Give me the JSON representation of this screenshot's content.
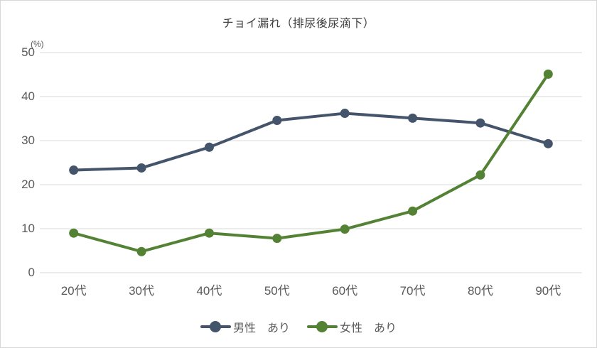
{
  "chart_data": {
    "type": "line",
    "title": "チョイ漏れ（排尿後尿滴下）",
    "unit_label": "(%)",
    "categories": [
      "20代",
      "30代",
      "40代",
      "50代",
      "60代",
      "70代",
      "80代",
      "90代"
    ],
    "series": [
      {
        "name": "男性　あり",
        "color": "#44546A",
        "values": [
          23.3,
          23.8,
          28.5,
          34.6,
          36.2,
          35.1,
          34.0,
          29.3
        ]
      },
      {
        "name": "女性　あり",
        "color": "#548235",
        "values": [
          9.0,
          4.8,
          9.0,
          7.8,
          9.9,
          14.0,
          22.2,
          45.1
        ]
      }
    ],
    "xlabel": "",
    "ylabel": "(%)",
    "ylim": [
      0,
      50
    ],
    "ytick_interval": 10,
    "yticks": [
      "0",
      "10",
      "20",
      "30",
      "40",
      "50"
    ],
    "grid": "horizontal",
    "gridline_color": "#d9d9d9",
    "axis_label_color": "#595959",
    "legend_position": "bottom"
  }
}
